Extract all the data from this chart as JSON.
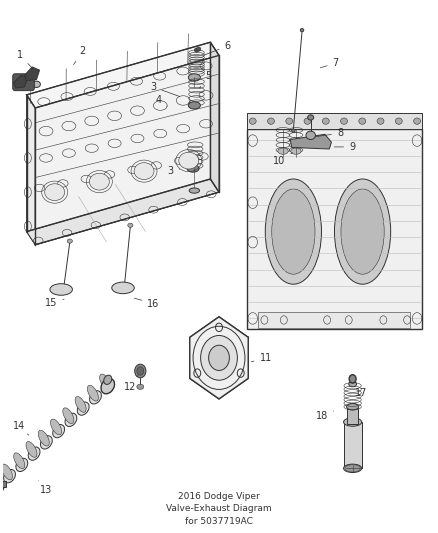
{
  "title": "2016 Dodge Viper\nValve-Exhaust Diagram\nfor 5037719AC",
  "background_color": "#ffffff",
  "fig_width": 4.38,
  "fig_height": 5.33,
  "dpi": 100,
  "line_color": "#333333",
  "label_fontsize": 7,
  "title_fontsize": 6.5,
  "title_color": "#333333",
  "label_positions": {
    "1": [
      0.075,
      0.87,
      0.04,
      0.9
    ],
    "2": [
      0.16,
      0.878,
      0.185,
      0.908
    ],
    "3a": [
      0.415,
      0.82,
      0.348,
      0.84
    ],
    "3b": [
      0.415,
      0.685,
      0.388,
      0.68
    ],
    "4": [
      0.385,
      0.8,
      0.36,
      0.815
    ],
    "5": [
      0.455,
      0.838,
      0.475,
      0.86
    ],
    "6": [
      0.458,
      0.898,
      0.52,
      0.918
    ],
    "7": [
      0.728,
      0.875,
      0.77,
      0.885
    ],
    "8": [
      0.718,
      0.745,
      0.78,
      0.752
    ],
    "9": [
      0.76,
      0.726,
      0.808,
      0.726
    ],
    "10": [
      0.67,
      0.715,
      0.64,
      0.7
    ],
    "11": [
      0.568,
      0.316,
      0.608,
      0.325
    ],
    "12": [
      0.313,
      0.292,
      0.295,
      0.27
    ],
    "13": [
      0.082,
      0.092,
      0.1,
      0.073
    ],
    "14": [
      0.06,
      0.178,
      0.038,
      0.195
    ],
    "15": [
      0.148,
      0.438,
      0.112,
      0.43
    ],
    "16": [
      0.298,
      0.44,
      0.348,
      0.428
    ],
    "17": [
      0.815,
      0.238,
      0.828,
      0.258
    ],
    "18": [
      0.765,
      0.224,
      0.738,
      0.215
    ]
  }
}
